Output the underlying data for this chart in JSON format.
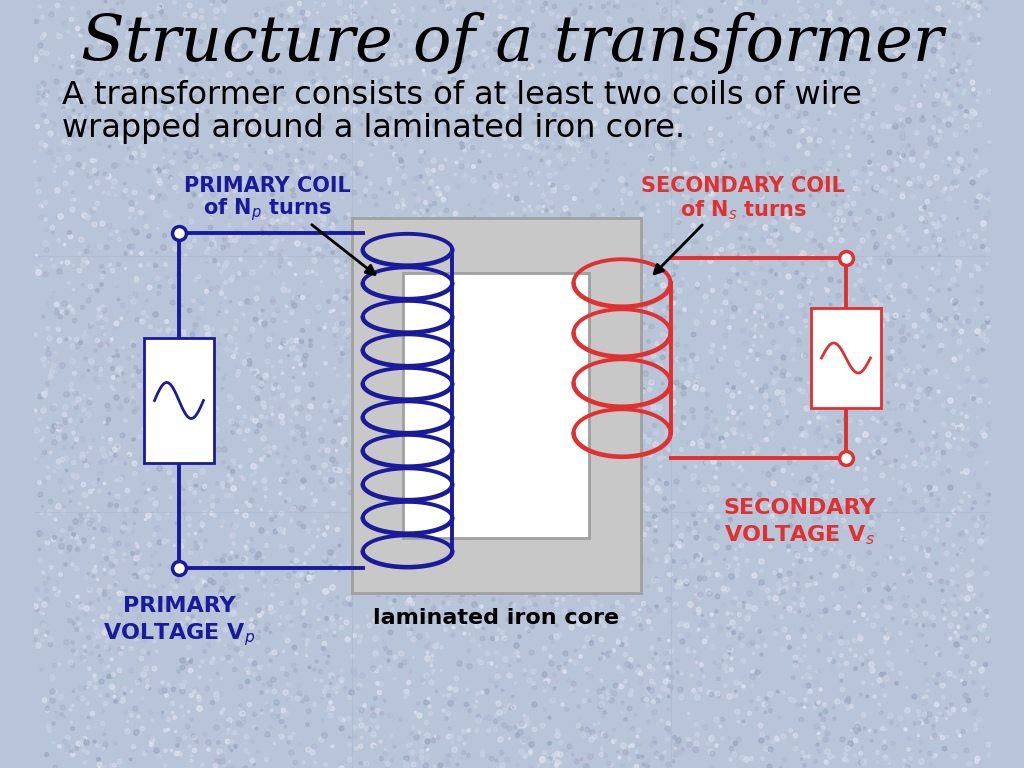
{
  "title": "Structure of a transformer",
  "subtitle_line1": "A transformer consists of at least two coils of wire",
  "subtitle_line2": "wrapped around a laminated iron core.",
  "bg_color": "#b8c4d8",
  "speckle_colors": [
    "#c8d0e8",
    "#a8b4cc",
    "#d0d8e8",
    "#b0bcd0"
  ],
  "primary_color": "#1a1a9c",
  "secondary_color": "#e03030",
  "core_color": "#c8c8c8",
  "core_edge_color": "#a0a0a0",
  "core_inner_color": "#ffffff",
  "label_core": "laminated iron core",
  "grid_color": "#a8b8cc",
  "wire_lw": 2.8,
  "coil_lw": 2.8
}
